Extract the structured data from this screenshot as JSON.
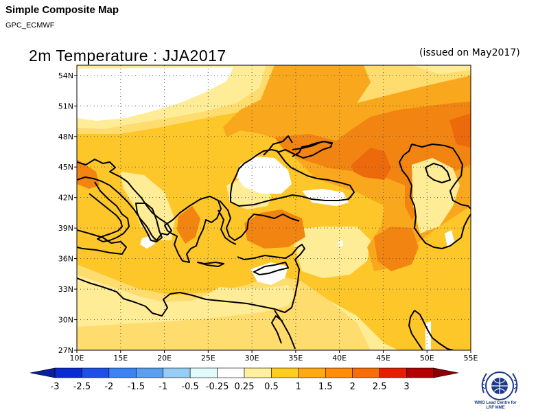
{
  "header": {
    "title": "Simple Composite Map",
    "subtitle": "GPC_ECMWF"
  },
  "map": {
    "title": "2m Temperature : JJA2017",
    "issued": "(issued on May2017)",
    "lat_labels": [
      "54N",
      "51N",
      "48N",
      "45N",
      "42N",
      "39N",
      "36N",
      "33N",
      "30N",
      "27N"
    ],
    "lon_labels": [
      "10E",
      "15E",
      "20E",
      "25E",
      "30E",
      "35E",
      "40E",
      "45E",
      "50E",
      "55E"
    ],
    "lon_range": [
      10,
      55
    ],
    "lat_range": [
      27,
      55
    ],
    "grid": true
  },
  "colorbar": {
    "labels": [
      "-3",
      "-2.5",
      "-2",
      "-1.5",
      "-1",
      "-0.5",
      "-0.25",
      "0.25",
      "0.5",
      "1",
      "1.5",
      "2",
      "2.5",
      "3"
    ],
    "colors": [
      "#0a2ad2",
      "#1e50e6",
      "#3c82f0",
      "#5aa0ee",
      "#96cdf5",
      "#e1fafa",
      "#ffffff",
      "#fff0a0",
      "#ffcd1e",
      "#ffaa14",
      "#ff8c0a",
      "#f56e0a",
      "#e61e00",
      "#b40000"
    ]
  },
  "field_colors": {
    "white": "#ffffff",
    "pale": "#feec96",
    "light": "#fedc6e",
    "mid": "#fdc72a",
    "orange": "#f9a71c",
    "deep": "#f28411",
    "strong": "#ec6a0c"
  },
  "logo": {
    "line1": "WMO Lead Centre for",
    "line2": "LRF MME"
  }
}
